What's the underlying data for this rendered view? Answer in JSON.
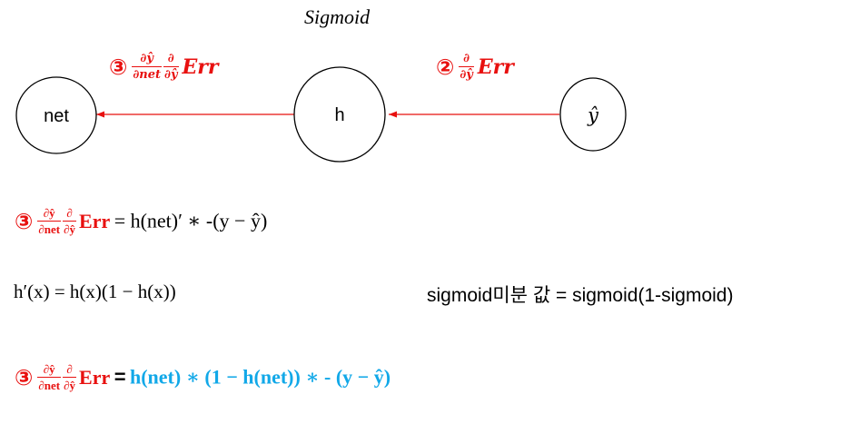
{
  "title": "Sigmoid",
  "nodes": {
    "net": "net",
    "h": "h",
    "yhat": "ŷ"
  },
  "colors": {
    "red": "#e8100f",
    "blue": "#11a8e8",
    "stroke": "#000000"
  },
  "arrow_labels": {
    "h_to_net": {
      "marker": "③",
      "frac1_num": "∂ŷ",
      "frac1_den": "∂net",
      "frac2_num": "∂",
      "frac2_den": "∂ŷ",
      "term": "Err"
    },
    "yhat_to_h": {
      "marker": "②",
      "frac_num": "∂",
      "frac_den": "∂ŷ",
      "term": "Err"
    }
  },
  "equations": {
    "eq1": {
      "marker": "③",
      "frac1_num": "∂ŷ",
      "frac1_den": "∂net",
      "frac2_num": "∂",
      "frac2_den": "∂ŷ",
      "term": "Err",
      "rhs": "= h(net)′ ∗ -(y − ŷ)"
    },
    "derivative": "h′(x) = h(x)(1 − h(x))",
    "sigmoid_note": "sigmoid미분 값 = sigmoid(1-sigmoid)",
    "eq2": {
      "marker": "③",
      "frac1_num": "∂ŷ",
      "frac1_den": "∂net",
      "frac2_num": "∂",
      "frac2_den": "∂ŷ",
      "term": "Err",
      "equals": "=",
      "rhs": "h(net) ∗ (1 − h(net)) ∗ - (y − ŷ)"
    }
  }
}
